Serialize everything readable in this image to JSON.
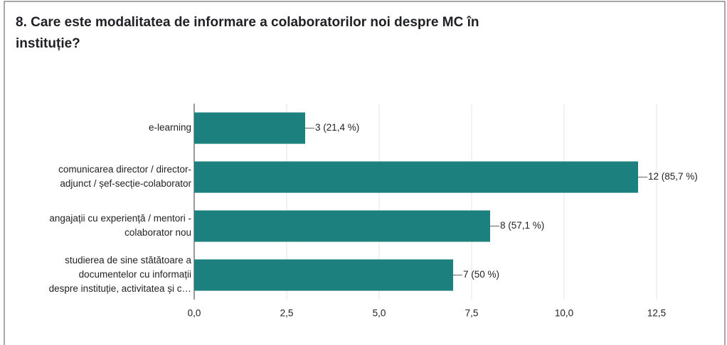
{
  "chart_data": {
    "type": "bar",
    "title": [
      "8. Care este modalitatea de informare a colaboratorilor noi despre MC în",
      "instituție?"
    ],
    "categories": [
      [
        "e-learning"
      ],
      [
        "comunicarea director / director-",
        "adjunct / șef-secție-colaborator"
      ],
      [
        "angajații cu experiență / mentori -",
        "colaborator nou"
      ],
      [
        "studierea de sine stătătoare a",
        "documentelor cu informații",
        "despre instituție, activitatea și c…"
      ]
    ],
    "values": [
      3,
      12,
      8,
      7
    ],
    "value_labels": [
      "3 (21,4 %)",
      "12 (85,7 %)",
      "8 (57,1 %)",
      "7 (50 %)"
    ],
    "color": "#1b807e",
    "xlim": [
      0,
      12.5
    ],
    "xticks": [
      {
        "value": 0,
        "label": "0,0"
      },
      {
        "value": 2.5,
        "label": "2,5"
      },
      {
        "value": 5,
        "label": "5,0"
      },
      {
        "value": 7.5,
        "label": "7,5"
      },
      {
        "value": 10,
        "label": "10,0"
      },
      {
        "value": 12.5,
        "label": "12,5"
      }
    ],
    "grid": true
  }
}
